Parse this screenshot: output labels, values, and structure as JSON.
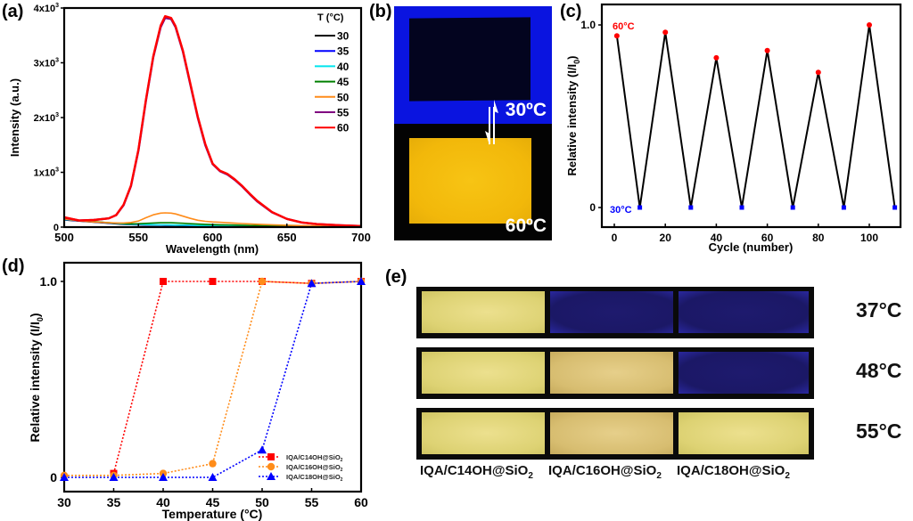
{
  "panels": {
    "a": "(a)",
    "b": "(b)",
    "c": "(c)",
    "d": "(d)",
    "e": "(e)"
  },
  "panel_b": {
    "top_label": "30ºC",
    "bottom_label": "60ºC",
    "colors": {
      "uv_background": "#0a14e0",
      "dark_sample": "#03041f",
      "bright_sample": "#f2b80a"
    }
  },
  "panel_e": {
    "row_labels": [
      "37°C",
      "48°C",
      "55°C"
    ],
    "column_labels": [
      "IQA/C14OH@SiO",
      "IQA/C16OH@SiO",
      "IQA/C18OH@SiO"
    ],
    "column_label_sub": "2",
    "states": [
      [
        "bright",
        "dark",
        "dark"
      ],
      [
        "bright",
        "bright",
        "dark"
      ],
      [
        "bright",
        "bright",
        "bright"
      ]
    ]
  },
  "chart_data": [
    {
      "id": "a",
      "type": "line",
      "title": "",
      "xlabel": "Wavelength (nm)",
      "ylabel": "Intensity (a.u.)",
      "xlim": [
        500,
        700
      ],
      "ylim": [
        0,
        4000
      ],
      "xticks": [
        500,
        550,
        600,
        650,
        700
      ],
      "xtick_labels": [
        "500",
        "550",
        "600",
        "650",
        "700"
      ],
      "yticks": [
        0,
        1000,
        2000,
        3000,
        4000
      ],
      "ytick_labels": [
        "0",
        "1x10",
        "2x10",
        "3x10",
        "4x10"
      ],
      "ytick_exponent": "3",
      "legend_title": "T   (°C)",
      "legend_position": "top-right",
      "x": [
        500,
        510,
        520,
        530,
        535,
        540,
        545,
        550,
        555,
        560,
        565,
        568,
        572,
        575,
        580,
        585,
        590,
        595,
        600,
        605,
        610,
        615,
        620,
        625,
        630,
        640,
        650,
        660,
        670,
        680,
        690,
        700
      ],
      "series": [
        {
          "name": "30",
          "color": "#000000",
          "values": [
            130,
            110,
            90,
            70,
            60,
            50,
            45,
            40,
            38,
            36,
            35,
            34,
            33,
            32,
            30,
            28,
            26,
            24,
            22,
            20,
            18,
            16,
            15,
            14,
            13,
            11,
            9,
            8,
            7,
            6,
            5,
            5
          ]
        },
        {
          "name": "35",
          "color": "#0000ff",
          "values": [
            135,
            115,
            95,
            75,
            65,
            55,
            50,
            45,
            42,
            40,
            38,
            37,
            36,
            35,
            33,
            30,
            28,
            26,
            24,
            22,
            20,
            18,
            16,
            15,
            14,
            12,
            10,
            9,
            8,
            7,
            6,
            5
          ]
        },
        {
          "name": "40",
          "color": "#00e5ee",
          "values": [
            140,
            118,
            98,
            78,
            68,
            58,
            52,
            48,
            45,
            43,
            41,
            40,
            39,
            38,
            36,
            33,
            30,
            28,
            26,
            24,
            22,
            20,
            18,
            16,
            15,
            13,
            11,
            10,
            9,
            8,
            7,
            6
          ]
        },
        {
          "name": "45",
          "color": "#008000",
          "values": [
            145,
            120,
            100,
            80,
            72,
            65,
            60,
            62,
            68,
            75,
            80,
            82,
            80,
            76,
            70,
            62,
            55,
            50,
            45,
            42,
            40,
            37,
            34,
            30,
            27,
            22,
            18,
            15,
            12,
            10,
            9,
            8
          ]
        },
        {
          "name": "50",
          "color": "#ff8c1a",
          "values": [
            150,
            115,
            95,
            80,
            75,
            75,
            85,
            110,
            170,
            225,
            255,
            260,
            255,
            240,
            200,
            160,
            125,
            105,
            95,
            88,
            80,
            72,
            65,
            58,
            52,
            42,
            34,
            28,
            22,
            18,
            15,
            12
          ]
        },
        {
          "name": "55",
          "color": "#800080",
          "values": [
            175,
            120,
            130,
            160,
            220,
            400,
            750,
            1400,
            2300,
            3100,
            3650,
            3820,
            3800,
            3650,
            3200,
            2600,
            2000,
            1500,
            1150,
            1020,
            960,
            860,
            740,
            600,
            470,
            270,
            150,
            85,
            55,
            40,
            30,
            20
          ]
        },
        {
          "name": "60",
          "color": "#ff0000",
          "values": [
            180,
            120,
            130,
            160,
            220,
            410,
            760,
            1420,
            2320,
            3120,
            3680,
            3850,
            3820,
            3670,
            3220,
            2620,
            2020,
            1520,
            1160,
            1030,
            970,
            870,
            750,
            610,
            480,
            275,
            150,
            85,
            55,
            40,
            30,
            20
          ]
        }
      ]
    },
    {
      "id": "c",
      "type": "line",
      "title": "",
      "xlabel": "Cycle (number)",
      "ylabel": "Relative intensity (I/I",
      "ylabel_sub": "0",
      "ylabel_end": ")",
      "xlim": [
        -5,
        113
      ],
      "ylim": [
        -0.1,
        1.12
      ],
      "xticks": [
        0,
        20,
        40,
        60,
        80,
        100
      ],
      "xtick_labels": [
        "0",
        "20",
        "40",
        "60",
        "80",
        "100"
      ],
      "yticks": [
        0,
        1.0
      ],
      "ytick_labels": [
        "0",
        "1.0"
      ],
      "annotations": [
        {
          "text": "60°C",
          "color": "#ff0000",
          "near": "top-left"
        },
        {
          "text": "30°C",
          "color": "#0000ff",
          "near": "bottom-left"
        }
      ],
      "x": [
        1,
        10,
        20,
        30,
        40,
        50,
        60,
        70,
        80,
        90,
        100,
        110
      ],
      "values": [
        0.94,
        0.0,
        0.96,
        0.0,
        0.82,
        0.0,
        0.86,
        0.0,
        0.74,
        0.0,
        1.0,
        0.0
      ],
      "line_color": "#000000",
      "high_marker_color": "#ff0000",
      "low_marker_color": "#0000ff"
    },
    {
      "id": "d",
      "type": "line",
      "title": "",
      "xlabel": "Temperature (°C)",
      "ylabel": "Relative intensity (I/I",
      "ylabel_sub": "0",
      "ylabel_end": ")",
      "xlim": [
        30,
        60
      ],
      "ylim": [
        -0.08,
        1.08
      ],
      "xticks": [
        30,
        35,
        40,
        45,
        50,
        55,
        60
      ],
      "xtick_labels": [
        "30",
        "35",
        "40",
        "45",
        "50",
        "55",
        "60"
      ],
      "yticks": [
        0,
        1.0
      ],
      "ytick_labels": [
        "0",
        "1.0"
      ],
      "legend_position": "bottom-right",
      "x": [
        30,
        35,
        40,
        45,
        50,
        55,
        60
      ],
      "series": [
        {
          "name": "IQA/C14OH@SiO",
          "name_sub": "2",
          "color": "#ff0000",
          "marker": "square",
          "values": [
            null,
            0.02,
            1.0,
            1.0,
            1.0,
            0.99,
            1.0
          ]
        },
        {
          "name": "IQA/C16OH@SiO",
          "name_sub": "2",
          "color": "#ff8c1a",
          "marker": "circle",
          "values": [
            0.01,
            0.01,
            0.02,
            0.07,
            1.0,
            0.99,
            1.0
          ]
        },
        {
          "name": "IQA/C18OH@SiO",
          "name_sub": "2",
          "color": "#0000ff",
          "marker": "triangle",
          "values": [
            0.0,
            0.0,
            0.0,
            0.0,
            0.14,
            0.99,
            1.0
          ]
        }
      ]
    }
  ]
}
